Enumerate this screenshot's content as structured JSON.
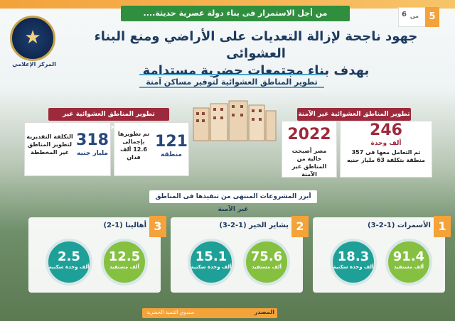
{
  "header": {
    "tagline": "من أجل الاستمرار فى بناء دولة عصرية حديثة....",
    "page_current": "5",
    "page_of": "من",
    "page_total": "6",
    "logo_caption": "المركز الإعلامي",
    "title_line1": "جهود ناجحة لإزالة التعديات على الأراضي ومنع البناء العشوائى",
    "title_line2": "بهدف بناء مجتمعات حضرية مستدامة",
    "subtitle": "تطوير المناطق العشوائية لتوفير مساكن آمنة"
  },
  "unsafe": {
    "tag": "تطوير المناطق العشوائية غير الآمنة",
    "stat1": {
      "value": "246",
      "unit": "ألف وحدة",
      "desc": "تم التعامل معها فى 357 منطقة بتكلفة 63 مليار جنيه"
    },
    "stat2": {
      "value": "2022",
      "desc": "مصر أصبحت خالية من المناطق غير الآمنة"
    }
  },
  "unplanned": {
    "tag": "تطوير المناطق العشوائية غير المخططة",
    "stat1": {
      "value": "121",
      "unit": "منطقة",
      "desc": "تم تطويرها بإجمالى 12.6 ألف فدان"
    },
    "stat2": {
      "value": "318",
      "unit": "مليار جنيه",
      "desc": "التكلفة التقديرية لتطوير المناطق غير المخططة"
    }
  },
  "projects": {
    "title": "أبرز المشروعات المنتهى من تنفيذها فى المناطق غير الآمنة",
    "cards": [
      {
        "num": "1",
        "title": "الأسمرات (1-2-3)",
        "a_value": "91.4",
        "a_label": "ألف مستفيد",
        "b_value": "18.3",
        "b_label": "ألف وحدة سكنية"
      },
      {
        "num": "2",
        "title": "بشاير الخير (1-2-3)",
        "a_value": "75.6",
        "a_label": "ألف مستفيد",
        "b_value": "15.1",
        "b_label": "ألف وحدة سكنية"
      },
      {
        "num": "3",
        "title": "أهالينا (1-2)",
        "a_value": "12.5",
        "a_label": "ألف مستفيد",
        "b_value": "2.5",
        "b_label": "ألف وحدة سكنية"
      }
    ]
  },
  "footer": {
    "source_label": "المصدر",
    "source_name": "صندوق التنمية الحضرية"
  },
  "colors": {
    "accent": "#9d2a3c",
    "navy": "#1d3a5f",
    "orange": "#f4a23a",
    "green": "#85c040",
    "teal": "#1ea098"
  }
}
